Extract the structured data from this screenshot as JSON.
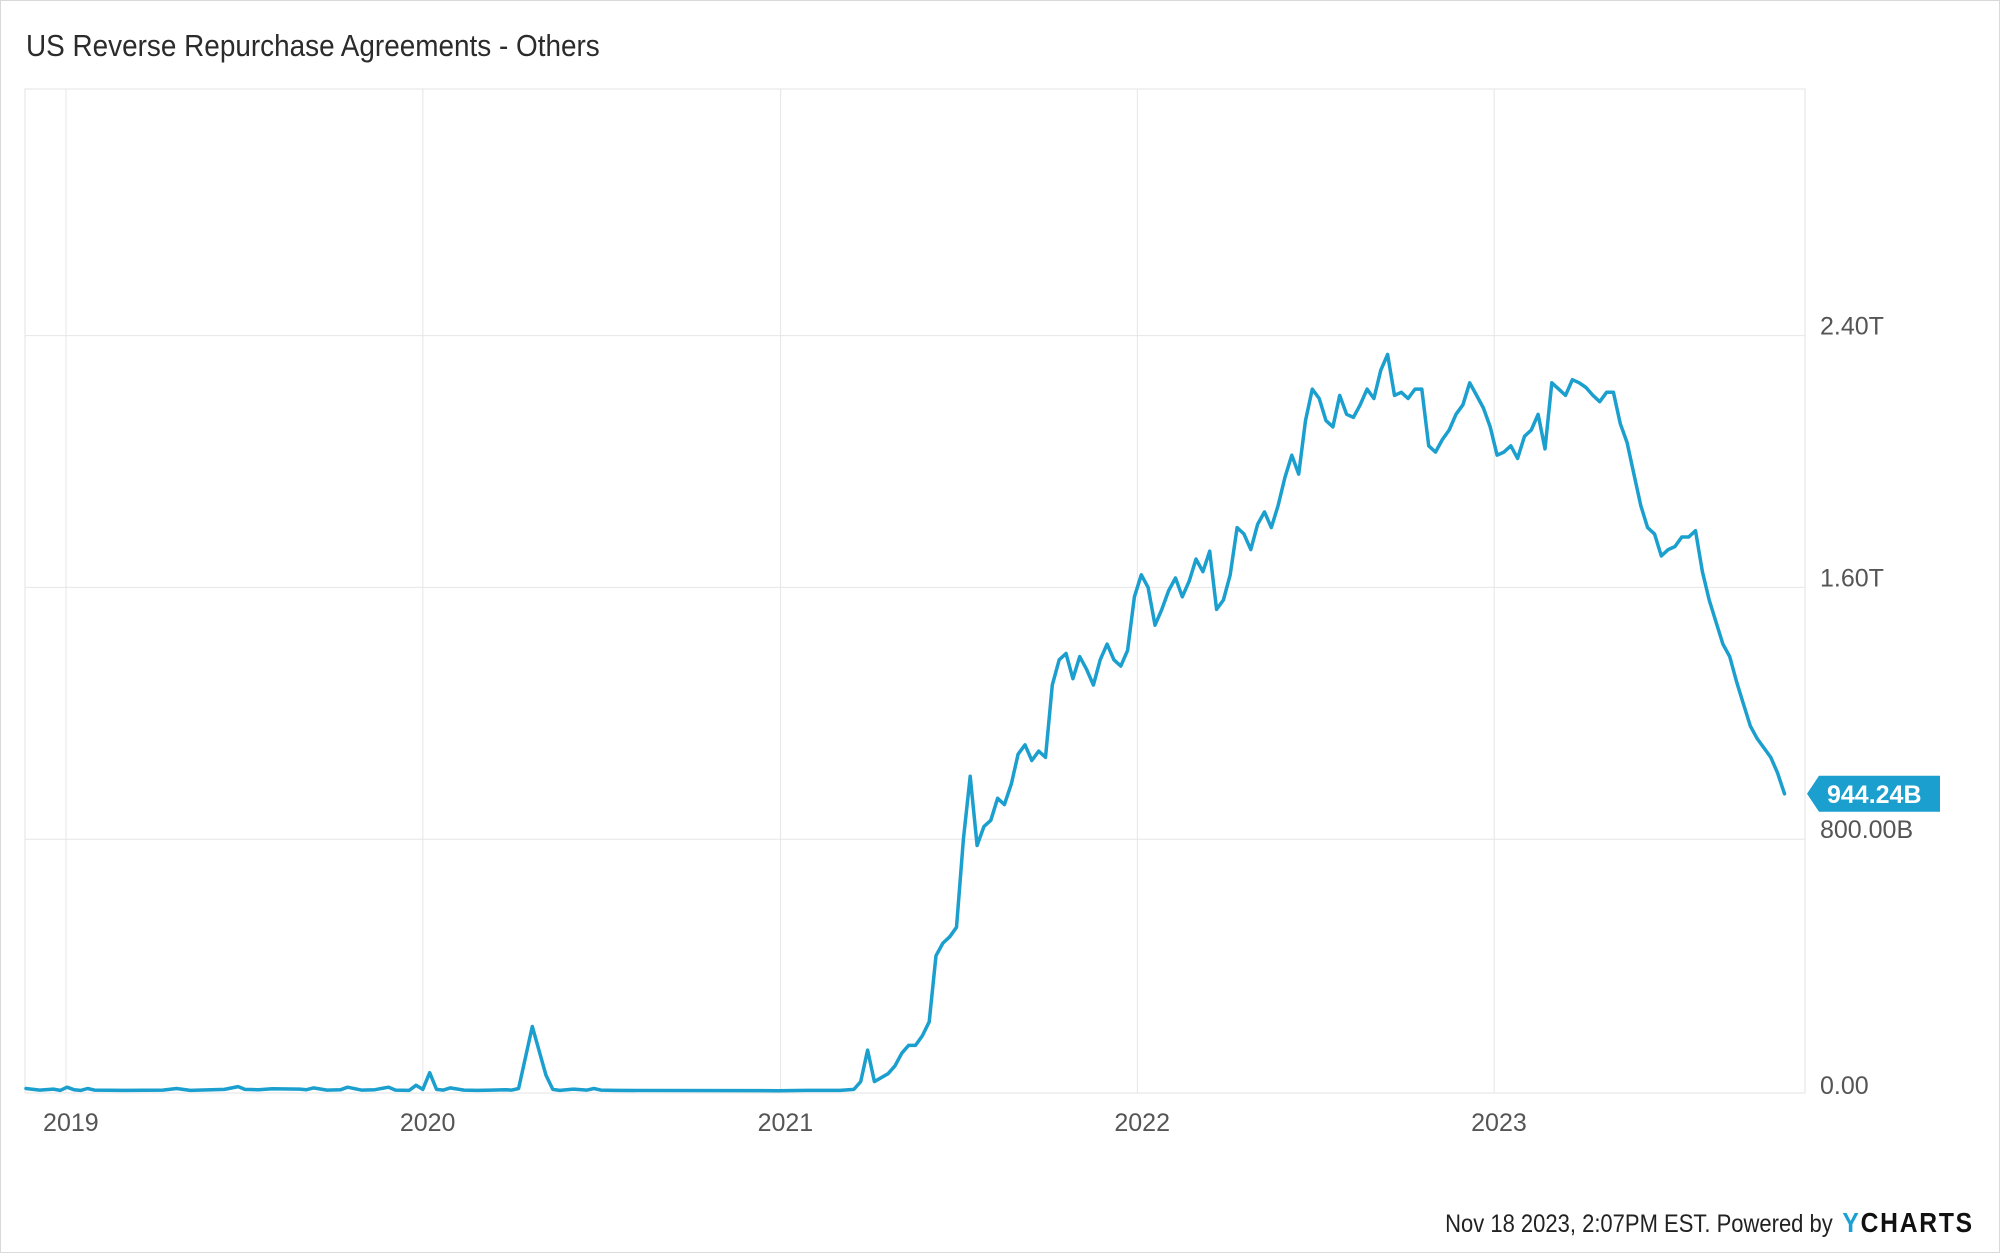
{
  "chart_data": {
    "type": "line",
    "title": "US Reverse Repurchase Agreements - Others",
    "x_range": [
      "2018-11-20",
      "2023-11-15"
    ],
    "x_ticks": [
      {
        "label": "2019",
        "date": "2019-01-01"
      },
      {
        "label": "2020",
        "date": "2020-01-01"
      },
      {
        "label": "2021",
        "date": "2021-01-01"
      },
      {
        "label": "2022",
        "date": "2022-01-01"
      },
      {
        "label": "2023",
        "date": "2023-01-01"
      }
    ],
    "y_axis_position": "right",
    "ylim": [
      0,
      3200
    ],
    "y_unit": "billions USD",
    "y_ticks": [
      {
        "label": "0.00",
        "value": 0
      },
      {
        "label": "800.00B",
        "value": 800
      },
      {
        "label": "1.60T",
        "value": 1600
      },
      {
        "label": "2.40T",
        "value": 2400
      }
    ],
    "grid": true,
    "line_color": "#1a9fce",
    "last_value_label": "944.24B",
    "series": [
      {
        "points": [
          [
            "2018-11-21",
            8
          ],
          [
            "2018-12-05",
            3
          ],
          [
            "2018-12-19",
            6
          ],
          [
            "2018-12-26",
            2
          ],
          [
            "2019-01-02",
            12
          ],
          [
            "2019-01-09",
            4
          ],
          [
            "2019-01-16",
            2
          ],
          [
            "2019-01-23",
            8
          ],
          [
            "2019-01-30",
            3
          ],
          [
            "2019-02-27",
            2
          ],
          [
            "2019-04-10",
            3
          ],
          [
            "2019-04-24",
            8
          ],
          [
            "2019-05-08",
            2
          ],
          [
            "2019-06-12",
            5
          ],
          [
            "2019-06-26",
            14
          ],
          [
            "2019-07-03",
            5
          ],
          [
            "2019-07-17",
            4
          ],
          [
            "2019-07-31",
            7
          ],
          [
            "2019-08-28",
            6
          ],
          [
            "2019-09-04",
            4
          ],
          [
            "2019-09-11",
            10
          ],
          [
            "2019-09-25",
            3
          ],
          [
            "2019-10-09",
            4
          ],
          [
            "2019-10-16",
            12
          ],
          [
            "2019-10-30",
            3
          ],
          [
            "2019-11-13",
            4
          ],
          [
            "2019-11-27",
            12
          ],
          [
            "2019-12-04",
            3
          ],
          [
            "2019-12-18",
            2
          ],
          [
            "2019-12-25",
            18
          ],
          [
            "2020-01-01",
            5
          ],
          [
            "2020-01-08",
            58
          ],
          [
            "2020-01-15",
            5
          ],
          [
            "2020-01-22",
            3
          ],
          [
            "2020-01-29",
            10
          ],
          [
            "2020-02-12",
            3
          ],
          [
            "2020-02-26",
            2
          ],
          [
            "2020-03-11",
            3
          ],
          [
            "2020-03-25",
            4
          ],
          [
            "2020-04-01",
            3
          ],
          [
            "2020-04-08",
            8
          ],
          [
            "2020-04-22",
            205
          ],
          [
            "2020-05-06",
            50
          ],
          [
            "2020-05-13",
            5
          ],
          [
            "2020-05-20",
            2
          ],
          [
            "2020-06-03",
            6
          ],
          [
            "2020-06-17",
            3
          ],
          [
            "2020-06-24",
            8
          ],
          [
            "2020-07-01",
            3
          ],
          [
            "2020-07-15",
            2
          ],
          [
            "2020-12-30",
            1
          ],
          [
            "2021-01-27",
            2
          ],
          [
            "2021-03-03",
            2
          ],
          [
            "2021-03-17",
            5
          ],
          [
            "2021-03-24",
            30
          ],
          [
            "2021-03-31",
            130
          ],
          [
            "2021-04-07",
            30
          ],
          [
            "2021-04-21",
            55
          ],
          [
            "2021-04-28",
            80
          ],
          [
            "2021-05-05",
            120
          ],
          [
            "2021-05-12",
            145
          ],
          [
            "2021-05-19",
            145
          ],
          [
            "2021-05-26",
            175
          ],
          [
            "2021-06-02",
            220
          ],
          [
            "2021-06-09",
            430
          ],
          [
            "2021-06-16",
            470
          ],
          [
            "2021-06-23",
            490
          ],
          [
            "2021-06-30",
            520
          ],
          [
            "2021-07-07",
            800
          ],
          [
            "2021-07-14",
            1000
          ],
          [
            "2021-07-21",
            780
          ],
          [
            "2021-07-28",
            840
          ],
          [
            "2021-08-04",
            860
          ],
          [
            "2021-08-11",
            930
          ],
          [
            "2021-08-18",
            910
          ],
          [
            "2021-08-25",
            975
          ],
          [
            "2021-09-01",
            1070
          ],
          [
            "2021-09-08",
            1100
          ],
          [
            "2021-09-15",
            1050
          ],
          [
            "2021-09-22",
            1080
          ],
          [
            "2021-09-29",
            1060
          ],
          [
            "2021-10-06",
            1290
          ],
          [
            "2021-10-13",
            1370
          ],
          [
            "2021-10-20",
            1390
          ],
          [
            "2021-10-27",
            1310
          ],
          [
            "2021-11-03",
            1380
          ],
          [
            "2021-11-10",
            1340
          ],
          [
            "2021-11-17",
            1290
          ],
          [
            "2021-11-24",
            1370
          ],
          [
            "2021-12-01",
            1420
          ],
          [
            "2021-12-08",
            1370
          ],
          [
            "2021-12-15",
            1350
          ],
          [
            "2021-12-22",
            1400
          ],
          [
            "2021-12-29",
            1570
          ],
          [
            "2022-01-05",
            1640
          ],
          [
            "2022-01-12",
            1600
          ],
          [
            "2022-01-19",
            1480
          ],
          [
            "2022-01-26",
            1530
          ],
          [
            "2022-02-02",
            1590
          ],
          [
            "2022-02-09",
            1630
          ],
          [
            "2022-02-16",
            1570
          ],
          [
            "2022-02-23",
            1620
          ],
          [
            "2022-03-02",
            1690
          ],
          [
            "2022-03-09",
            1650
          ],
          [
            "2022-03-16",
            1715
          ],
          [
            "2022-03-23",
            1530
          ],
          [
            "2022-03-30",
            1560
          ],
          [
            "2022-04-06",
            1640
          ],
          [
            "2022-04-13",
            1790
          ],
          [
            "2022-04-20",
            1770
          ],
          [
            "2022-04-27",
            1720
          ],
          [
            "2022-05-04",
            1800
          ],
          [
            "2022-05-11",
            1840
          ],
          [
            "2022-05-18",
            1790
          ],
          [
            "2022-05-25",
            1860
          ],
          [
            "2022-06-01",
            1950
          ],
          [
            "2022-06-08",
            2020
          ],
          [
            "2022-06-15",
            1960
          ],
          [
            "2022-06-22",
            2130
          ],
          [
            "2022-06-29",
            2230
          ],
          [
            "2022-07-06",
            2200
          ],
          [
            "2022-07-13",
            2130
          ],
          [
            "2022-07-20",
            2110
          ],
          [
            "2022-07-27",
            2210
          ],
          [
            "2022-08-03",
            2150
          ],
          [
            "2022-08-10",
            2140
          ],
          [
            "2022-08-17",
            2180
          ],
          [
            "2022-08-24",
            2230
          ],
          [
            "2022-08-31",
            2200
          ],
          [
            "2022-09-07",
            2290
          ],
          [
            "2022-09-14",
            2340
          ],
          [
            "2022-09-21",
            2210
          ],
          [
            "2022-09-28",
            2220
          ],
          [
            "2022-10-05",
            2200
          ],
          [
            "2022-10-12",
            2230
          ],
          [
            "2022-10-19",
            2230
          ],
          [
            "2022-10-26",
            2050
          ],
          [
            "2022-11-02",
            2030
          ],
          [
            "2022-11-09",
            2070
          ],
          [
            "2022-11-16",
            2100
          ],
          [
            "2022-11-23",
            2150
          ],
          [
            "2022-11-30",
            2180
          ],
          [
            "2022-12-07",
            2250
          ],
          [
            "2022-12-14",
            2210
          ],
          [
            "2022-12-21",
            2170
          ],
          [
            "2022-12-28",
            2110
          ],
          [
            "2023-01-04",
            2020
          ],
          [
            "2023-01-11",
            2030
          ],
          [
            "2023-01-18",
            2050
          ],
          [
            "2023-01-25",
            2010
          ],
          [
            "2023-02-01",
            2080
          ],
          [
            "2023-02-08",
            2100
          ],
          [
            "2023-02-15",
            2150
          ],
          [
            "2023-02-22",
            2040
          ],
          [
            "2023-03-01",
            2250
          ],
          [
            "2023-03-08",
            2230
          ],
          [
            "2023-03-15",
            2210
          ],
          [
            "2023-03-22",
            2260
          ],
          [
            "2023-03-29",
            2250
          ],
          [
            "2023-04-05",
            2235
          ],
          [
            "2023-04-12",
            2210
          ],
          [
            "2023-04-19",
            2190
          ],
          [
            "2023-04-26",
            2220
          ],
          [
            "2023-05-03",
            2220
          ],
          [
            "2023-05-10",
            2120
          ],
          [
            "2023-05-17",
            2060
          ],
          [
            "2023-05-24",
            1960
          ],
          [
            "2023-05-31",
            1860
          ],
          [
            "2023-06-07",
            1790
          ],
          [
            "2023-06-14",
            1770
          ],
          [
            "2023-06-21",
            1700
          ],
          [
            "2023-06-28",
            1720
          ],
          [
            "2023-07-05",
            1730
          ],
          [
            "2023-07-12",
            1760
          ],
          [
            "2023-07-19",
            1760
          ],
          [
            "2023-07-26",
            1780
          ],
          [
            "2023-08-02",
            1650
          ],
          [
            "2023-08-09",
            1560
          ],
          [
            "2023-08-16",
            1490
          ],
          [
            "2023-08-23",
            1420
          ],
          [
            "2023-08-30",
            1380
          ],
          [
            "2023-09-06",
            1300
          ],
          [
            "2023-09-13",
            1230
          ],
          [
            "2023-09-20",
            1160
          ],
          [
            "2023-09-27",
            1120
          ],
          [
            "2023-10-04",
            1090
          ],
          [
            "2023-10-11",
            1060
          ],
          [
            "2023-10-18",
            1010
          ],
          [
            "2023-10-25",
            944.24
          ]
        ]
      }
    ]
  },
  "footer": {
    "timestamp_text": "Nov 18 2023, 2:07PM EST. Powered by",
    "brand_y": "Y",
    "brand_rest": "CHARTS"
  }
}
